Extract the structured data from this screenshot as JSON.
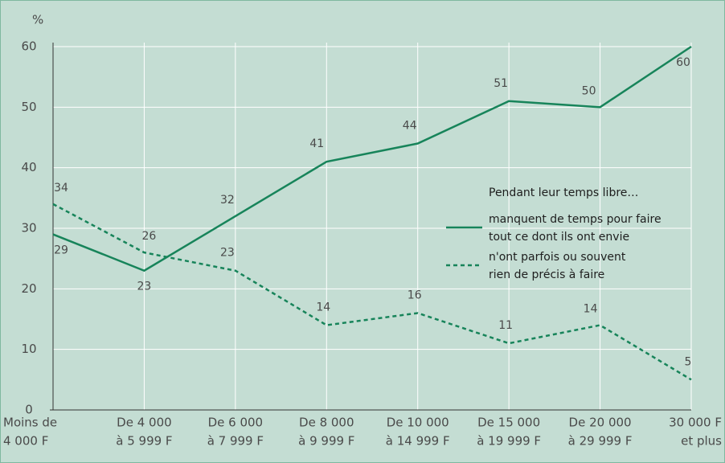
{
  "chart_data": {
    "type": "line",
    "y_unit": "%",
    "categories": [
      [
        "Moins de",
        "4 000 F"
      ],
      [
        "De 4 000",
        "à 5 999 F"
      ],
      [
        "De 6 000",
        "à 7 999 F"
      ],
      [
        "De 8 000",
        "à 9 999 F"
      ],
      [
        "De 10 000",
        "à 14 999 F"
      ],
      [
        "De 15 000",
        "à 19 999 F"
      ],
      [
        "De 20 000",
        "à 29 999 F"
      ],
      [
        "30 000 F",
        "et plus"
      ]
    ],
    "series": [
      {
        "name": [
          "manquent de temps pour faire",
          "tout ce dont ils ont envie"
        ],
        "color": "#17845a",
        "dash": false,
        "values": [
          29,
          23,
          32,
          41,
          44,
          51,
          50,
          60
        ]
      },
      {
        "name": [
          "n'ont parfois ou souvent",
          "rien de précis à faire"
        ],
        "color": "#17845a",
        "dash": true,
        "values": [
          34,
          26,
          23,
          14,
          16,
          11,
          14,
          5
        ]
      }
    ],
    "legend_title": "Pendant leur temps libre…",
    "ylim": [
      0,
      60
    ],
    "yticks": [
      0,
      10,
      20,
      30,
      40,
      50,
      60
    ],
    "grid": true
  }
}
